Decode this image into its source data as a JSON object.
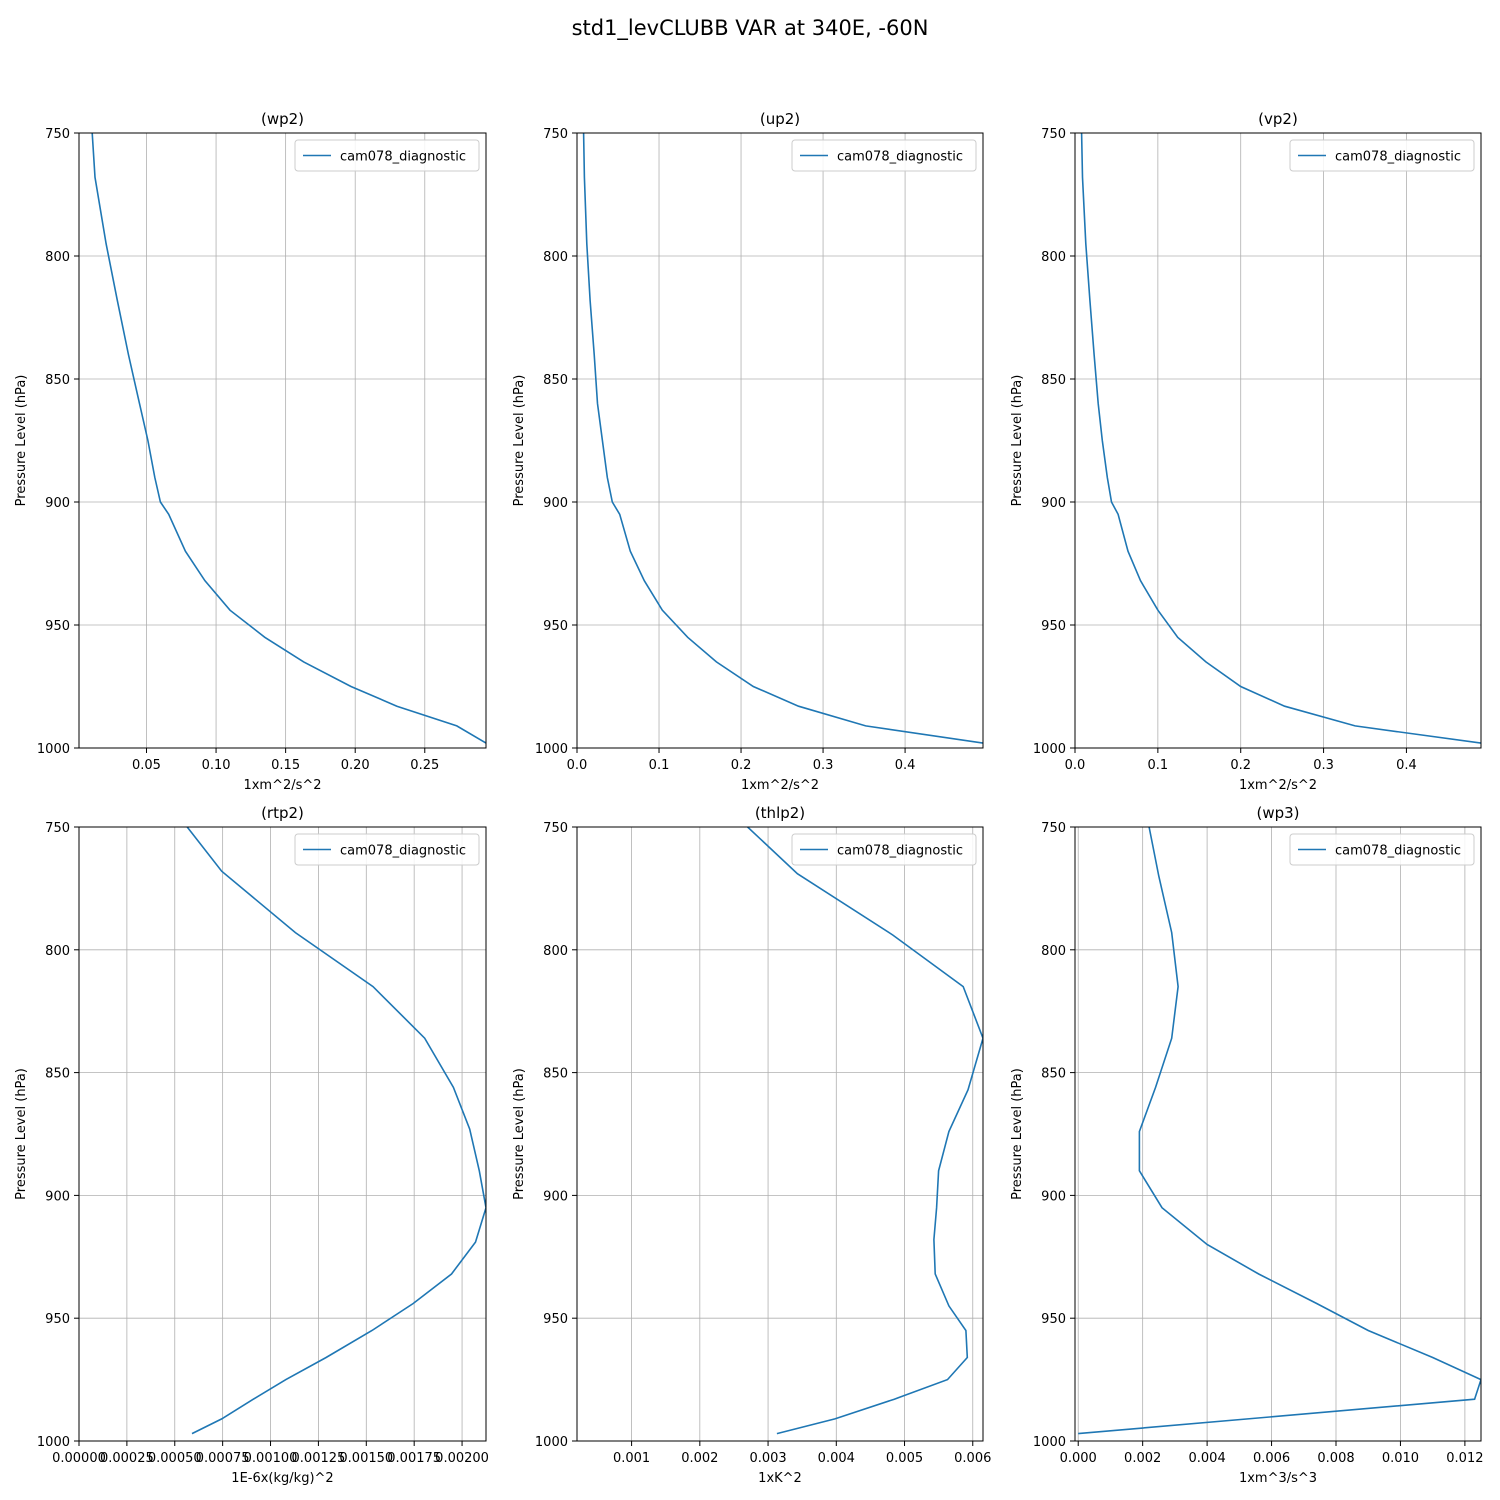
{
  "figure": {
    "title": "std1_levCLUBB VAR at 340E, -60N"
  },
  "chart_data": [
    {
      "type": "line",
      "title": "(wp2)",
      "xlabel": "1xm^2/s^2",
      "ylabel": "Pressure Level (hPa)",
      "xlim": [
        0.0015,
        0.294
      ],
      "ylim": [
        1000,
        750
      ],
      "xticks": [
        0.05,
        0.1,
        0.15,
        0.2,
        0.25
      ],
      "xtick_labels": [
        "0.05",
        "0.10",
        "0.15",
        "0.20",
        "0.25"
      ],
      "yticks": [
        750,
        800,
        850,
        900,
        950,
        1000
      ],
      "ytick_labels": [
        "750",
        "800",
        "850",
        "900",
        "950",
        "1000"
      ],
      "grid": true,
      "legend": "upper right",
      "color": "#1f77b4",
      "series": [
        {
          "name": "cam078_diagnostic",
          "x": [
            0.011,
            0.013,
            0.021,
            0.029,
            0.037,
            0.045,
            0.051,
            0.056,
            0.06,
            0.066,
            0.078,
            0.092,
            0.11,
            0.135,
            0.163,
            0.197,
            0.23,
            0.273,
            0.294
          ],
          "y": [
            750,
            768,
            795,
            818,
            840,
            860,
            875,
            890,
            900,
            905,
            920,
            932,
            944,
            955,
            965,
            975,
            983,
            991,
            998
          ]
        }
      ]
    },
    {
      "type": "line",
      "title": "(up2)",
      "xlabel": "1xm^2/s^2",
      "ylabel": "Pressure Level (hPa)",
      "xlim": [
        0.0,
        0.495
      ],
      "ylim": [
        1000,
        750
      ],
      "xticks": [
        0.0,
        0.1,
        0.2,
        0.3,
        0.4
      ],
      "xtick_labels": [
        "0.0",
        "0.1",
        "0.2",
        "0.3",
        "0.4"
      ],
      "yticks": [
        750,
        800,
        850,
        900,
        950,
        1000
      ],
      "ytick_labels": [
        "750",
        "800",
        "850",
        "900",
        "950",
        "1000"
      ],
      "grid": true,
      "legend": "upper right",
      "color": "#1f77b4",
      "series": [
        {
          "name": "cam078_diagnostic",
          "x": [
            0.008,
            0.009,
            0.012,
            0.016,
            0.021,
            0.025,
            0.031,
            0.037,
            0.043,
            0.052,
            0.065,
            0.082,
            0.104,
            0.135,
            0.17,
            0.215,
            0.27,
            0.352,
            0.495
          ],
          "y": [
            750,
            768,
            795,
            818,
            840,
            860,
            875,
            890,
            900,
            905,
            920,
            932,
            944,
            955,
            965,
            975,
            983,
            991,
            998
          ]
        }
      ]
    },
    {
      "type": "line",
      "title": "(vp2)",
      "xlabel": "1xm^2/s^2",
      "ylabel": "Pressure Level (hPa)",
      "xlim": [
        0.0,
        0.49
      ],
      "ylim": [
        1000,
        750
      ],
      "xticks": [
        0.0,
        0.1,
        0.2,
        0.3,
        0.4
      ],
      "xtick_labels": [
        "0.0",
        "0.1",
        "0.2",
        "0.3",
        "0.4"
      ],
      "yticks": [
        750,
        800,
        850,
        900,
        950,
        1000
      ],
      "ytick_labels": [
        "750",
        "800",
        "850",
        "900",
        "950",
        "1000"
      ],
      "grid": true,
      "legend": "upper right",
      "color": "#1f77b4",
      "series": [
        {
          "name": "cam078_diagnostic",
          "x": [
            0.008,
            0.009,
            0.013,
            0.018,
            0.023,
            0.028,
            0.033,
            0.039,
            0.044,
            0.052,
            0.064,
            0.079,
            0.1,
            0.124,
            0.158,
            0.2,
            0.253,
            0.338,
            0.49
          ],
          "y": [
            750,
            768,
            795,
            818,
            840,
            860,
            875,
            890,
            900,
            905,
            920,
            932,
            944,
            955,
            965,
            975,
            983,
            991,
            998
          ]
        }
      ]
    },
    {
      "type": "line",
      "title": "(rtp2)",
      "xlabel": "1E-6x(kg/kg)^2",
      "ylabel": "Pressure Level (hPa)",
      "xlim": [
        0.0,
        0.002125
      ],
      "ylim": [
        1000,
        750
      ],
      "xticks": [
        0.0,
        0.00025,
        0.0005,
        0.00075,
        0.001,
        0.00125,
        0.0015,
        0.00175,
        0.002
      ],
      "xtick_labels": [
        "0.00000",
        "0.00025",
        "0.00050",
        "0.00075",
        "0.00100",
        "0.00125",
        "0.00150",
        "0.00175",
        "0.00200"
      ],
      "yticks": [
        750,
        800,
        850,
        900,
        950,
        1000
      ],
      "ytick_labels": [
        "750",
        "800",
        "850",
        "900",
        "950",
        "1000"
      ],
      "grid": true,
      "legend": "upper right",
      "color": "#1f77b4",
      "series": [
        {
          "name": "cam078_diagnostic",
          "x": [
            0.000565,
            0.000745,
            0.00113,
            0.001535,
            0.001805,
            0.001955,
            0.00204,
            0.00209,
            0.002125,
            0.00207,
            0.001945,
            0.001745,
            0.00153,
            0.00129,
            0.00108,
            0.00091,
            0.000745,
            0.00059
          ],
          "y": [
            750,
            768,
            793,
            815,
            836,
            856,
            873,
            890,
            905,
            919,
            932,
            944,
            955,
            966,
            975,
            983,
            991,
            997
          ]
        }
      ]
    },
    {
      "type": "line",
      "title": "(thlp2)",
      "xlabel": "1xK^2",
      "ylabel": "Pressure Level (hPa)",
      "xlim": [
        0.0002,
        0.00615
      ],
      "ylim": [
        1000,
        750
      ],
      "xticks": [
        0.001,
        0.002,
        0.003,
        0.004,
        0.005,
        0.006
      ],
      "xtick_labels": [
        "0.001",
        "0.002",
        "0.003",
        "0.004",
        "0.005",
        "0.006"
      ],
      "yticks": [
        750,
        800,
        850,
        900,
        950,
        1000
      ],
      "ytick_labels": [
        "750",
        "800",
        "850",
        "900",
        "950",
        "1000"
      ],
      "grid": true,
      "legend": "upper right",
      "color": "#1f77b4",
      "series": [
        {
          "name": "cam078_diagnostic",
          "x": [
            0.0027,
            0.00343,
            0.00483,
            0.00586,
            0.00615,
            0.00593,
            0.00565,
            0.0055,
            0.00547,
            0.00543,
            0.00545,
            0.00565,
            0.0059,
            0.00592,
            0.00563,
            0.00485,
            0.00398,
            0.00313
          ],
          "y": [
            750,
            769,
            794,
            815,
            836,
            857,
            874,
            890,
            905,
            918,
            932,
            945,
            955,
            966,
            975,
            983,
            991,
            997
          ]
        }
      ]
    },
    {
      "type": "line",
      "title": "(wp3)",
      "xlabel": "1xm^3/s^3",
      "ylabel": "Pressure Level (hPa)",
      "xlim": [
        -0.0001,
        0.0125
      ],
      "ylim": [
        1000,
        750
      ],
      "xticks": [
        0.0,
        0.002,
        0.004,
        0.006,
        0.008,
        0.01,
        0.012
      ],
      "xtick_labels": [
        "0.000",
        "0.002",
        "0.004",
        "0.006",
        "0.008",
        "0.010",
        "0.012"
      ],
      "yticks": [
        750,
        800,
        850,
        900,
        950,
        1000
      ],
      "ytick_labels": [
        "750",
        "800",
        "850",
        "900",
        "950",
        "1000"
      ],
      "grid": true,
      "legend": "upper right",
      "color": "#1f77b4",
      "series": [
        {
          "name": "cam078_diagnostic",
          "x": [
            0.0022,
            0.0025,
            0.0029,
            0.0031,
            0.0029,
            0.0024,
            0.0019,
            0.0019,
            0.0026,
            0.004,
            0.0056,
            0.0074,
            0.009,
            0.011,
            0.0125,
            0.0123,
            0.0
          ],
          "y": [
            750,
            770,
            793,
            815,
            836,
            856,
            874,
            890,
            905,
            920,
            932,
            944,
            955,
            966,
            975,
            983,
            997
          ]
        }
      ]
    }
  ]
}
